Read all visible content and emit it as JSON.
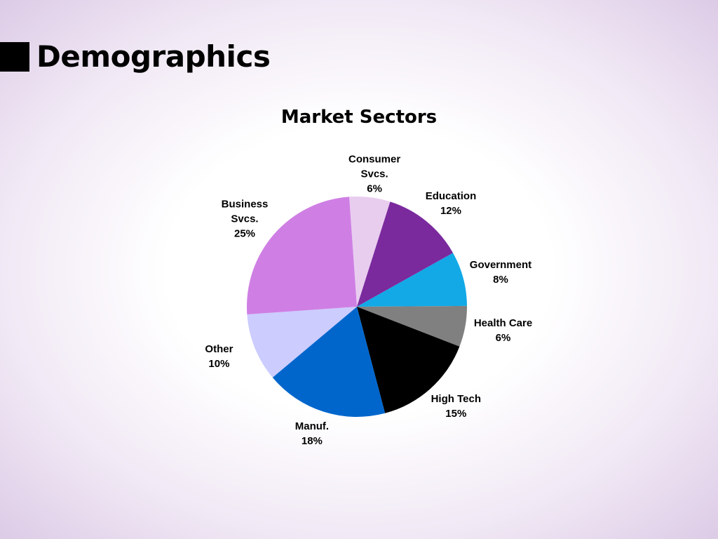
{
  "slide_title": "Demographics",
  "chart_data": {
    "type": "pie",
    "title": "Market Sectors",
    "categories": [
      "Consumer\nSvcs.",
      "Education",
      "Government",
      "Health Care",
      "High Tech",
      "Manuf.",
      "Other",
      "Business\nSvcs."
    ],
    "values": [
      6,
      12,
      8,
      6,
      15,
      18,
      10,
      25
    ],
    "value_labels": [
      "6%",
      "12%",
      "8%",
      "6%",
      "15%",
      "18%",
      "10%",
      "25%"
    ],
    "colors": [
      "#e8cdef",
      "#7b2a9e",
      "#12a9e6",
      "#808080",
      "#000000",
      "#0066cc",
      "#ccccff",
      "#cf7fe4"
    ]
  }
}
